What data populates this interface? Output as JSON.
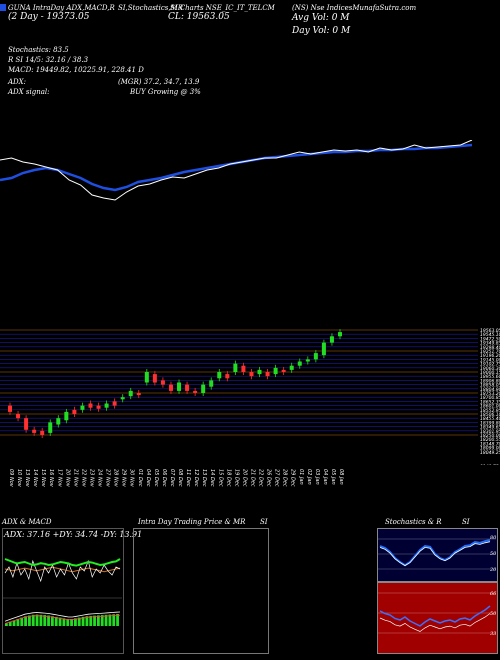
{
  "header": {
    "line1_left": "GUNA IntraDay ADX,MACD,R",
    "line1_mid1": "SI,Stochastics,MR",
    "line1_mid2": "SI Charts NSE_IC_IT_TELCM",
    "line1_right": "(NS) Nse IndicesMunafaSutra.com",
    "line2_left": "(2 Day - 19373.05",
    "line2_mid": "CL: 19563.05",
    "line2_right": "Avg Vol: 0  M",
    "line3_right": "Day Vol: 0   M",
    "stoch": "Stochastics: 83.5",
    "rsi": "R                    SI 14/5: 32.16 / 38.3",
    "macd": "MACD: 19449.82,  10225.91,  228.41 D",
    "adx_label": "ADX:",
    "adx_values": "(MGR) 37.2,  34.7,  13.9",
    "adx_signal": "ADX signal:",
    "adx_signal_value": "BUY Growing @ 3%"
  },
  "colors": {
    "background": "#000000",
    "price_line": "#ffffff",
    "ma_line": "#1f4fe0",
    "grid_orange": "#b06a10",
    "grid_blue": "#1a1aa0",
    "candle_up": "#22dd22",
    "candle_down": "#ff3030",
    "rsi_panel_bg": "#a00000",
    "stoch_panel_bg": "#000033"
  },
  "price_axis_labels": [
    "19563.05",
    "19545.10",
    "19472.50",
    "19349.85",
    "19298.40",
    "19251.70",
    "19196.20",
    "19145.00",
    "19102.75",
    "19060.30",
    "19000.15",
    "18955.60",
    "18906.80",
    "18858.05",
    "18804.90",
    "18753.20",
    "18700.85",
    "18652.35",
    "18601.00",
    "18552.95",
    "18506.10",
    "18455.40",
    "18399.80",
    "18349.65",
    "18301.95",
    "18250.00",
    "18200.55",
    "18148.70",
    "18099.00",
    "18049.25",
    "9148.75",
    "9149.75"
  ],
  "dates": [
    "09 Nov",
    "10 Nov",
    "13 Nov",
    "14 Nov",
    "15 Nov",
    "16 Nov",
    "17 Nov",
    "20 Nov",
    "21 Nov",
    "22 Nov",
    "23 Nov",
    "24 Nov",
    "27 Nov",
    "28 Nov",
    "29 Nov",
    "30 Nov",
    "01 Dec",
    "04 Dec",
    "05 Dec",
    "06 Dec",
    "07 Dec",
    "08 Dec",
    "11 Dec",
    "12 Dec",
    "13 Dec",
    "14 Dec",
    "15 Dec",
    "18 Dec",
    "19 Dec",
    "20 Dec",
    "21 Dec",
    "22 Dec",
    "26 Dec",
    "27 Dec",
    "28 Dec",
    "29 Dec",
    "01 Jan",
    "02 Jan",
    "03 Jan",
    "04 Jan",
    "05 Jan",
    "08 Jan"
  ],
  "panels": {
    "adx_title": "ADX  & MACD",
    "adx_readout": "ADX: 37.16  +DY: 34.74  -DY: 13.91",
    "intra_title": "Intra  Day Trading Price  & MR",
    "intra_title2": "SI",
    "stoch_title": "Stochastics & R",
    "stoch_title2": "SI",
    "stoch_levels": [
      "80",
      "50",
      "20"
    ],
    "rsi_levels": [
      "66",
      "50",
      "33"
    ],
    "stoch_value": "83.5",
    "rsi_value": "32.16"
  },
  "chart_data": {
    "type": "candlestick",
    "price_line": [
      0.2,
      0.18,
      0.22,
      0.24,
      0.27,
      0.3,
      0.4,
      0.45,
      0.55,
      0.58,
      0.6,
      0.52,
      0.46,
      0.44,
      0.4,
      0.37,
      0.38,
      0.34,
      0.3,
      0.28,
      0.24,
      0.22,
      0.2,
      0.18,
      0.18,
      0.15,
      0.12,
      0.14,
      0.12,
      0.1,
      0.11,
      0.1,
      0.12,
      0.08,
      0.1,
      0.09,
      0.05,
      0.08,
      0.07,
      0.06,
      0.05,
      0.0
    ],
    "ma_line": [
      0.4,
      0.38,
      0.33,
      0.3,
      0.28,
      0.3,
      0.34,
      0.38,
      0.44,
      0.48,
      0.5,
      0.47,
      0.42,
      0.4,
      0.38,
      0.35,
      0.32,
      0.3,
      0.28,
      0.26,
      0.24,
      0.22,
      0.2,
      0.18,
      0.17,
      0.16,
      0.15,
      0.14,
      0.13,
      0.12,
      0.12,
      0.11,
      0.11,
      0.1,
      0.1,
      0.09,
      0.09,
      0.08,
      0.08,
      0.07,
      0.06,
      0.05
    ],
    "candles": [
      {
        "o": 0.72,
        "c": 0.78,
        "up": false
      },
      {
        "o": 0.8,
        "c": 0.84,
        "up": false
      },
      {
        "o": 0.84,
        "c": 0.95,
        "up": false
      },
      {
        "o": 0.95,
        "c": 0.98,
        "up": false
      },
      {
        "o": 0.96,
        "c": 1.0,
        "up": false
      },
      {
        "o": 0.98,
        "c": 0.88,
        "up": true
      },
      {
        "o": 0.9,
        "c": 0.84,
        "up": true
      },
      {
        "o": 0.86,
        "c": 0.78,
        "up": true
      },
      {
        "o": 0.8,
        "c": 0.76,
        "up": false
      },
      {
        "o": 0.76,
        "c": 0.72,
        "up": true
      },
      {
        "o": 0.74,
        "c": 0.7,
        "up": false
      },
      {
        "o": 0.72,
        "c": 0.75,
        "up": false
      },
      {
        "o": 0.74,
        "c": 0.7,
        "up": true
      },
      {
        "o": 0.72,
        "c": 0.68,
        "up": false
      },
      {
        "o": 0.66,
        "c": 0.64,
        "up": true
      },
      {
        "o": 0.63,
        "c": 0.58,
        "up": true
      },
      {
        "o": 0.6,
        "c": 0.62,
        "up": false
      },
      {
        "o": 0.5,
        "c": 0.4,
        "up": true
      },
      {
        "o": 0.42,
        "c": 0.5,
        "up": false
      },
      {
        "o": 0.48,
        "c": 0.52,
        "up": false
      },
      {
        "o": 0.52,
        "c": 0.58,
        "up": false
      },
      {
        "o": 0.58,
        "c": 0.5,
        "up": true
      },
      {
        "o": 0.52,
        "c": 0.58,
        "up": false
      },
      {
        "o": 0.58,
        "c": 0.6,
        "up": false
      },
      {
        "o": 0.6,
        "c": 0.52,
        "up": true
      },
      {
        "o": 0.54,
        "c": 0.48,
        "up": true
      },
      {
        "o": 0.46,
        "c": 0.4,
        "up": true
      },
      {
        "o": 0.42,
        "c": 0.46,
        "up": false
      },
      {
        "o": 0.4,
        "c": 0.32,
        "up": true
      },
      {
        "o": 0.34,
        "c": 0.4,
        "up": false
      },
      {
        "o": 0.4,
        "c": 0.44,
        "up": false
      },
      {
        "o": 0.42,
        "c": 0.38,
        "up": true
      },
      {
        "o": 0.4,
        "c": 0.44,
        "up": false
      },
      {
        "o": 0.42,
        "c": 0.36,
        "up": true
      },
      {
        "o": 0.38,
        "c": 0.4,
        "up": false
      },
      {
        "o": 0.38,
        "c": 0.34,
        "up": true
      },
      {
        "o": 0.34,
        "c": 0.3,
        "up": true
      },
      {
        "o": 0.3,
        "c": 0.28,
        "up": true
      },
      {
        "o": 0.28,
        "c": 0.22,
        "up": true
      },
      {
        "o": 0.24,
        "c": 0.12,
        "up": true
      },
      {
        "o": 0.12,
        "c": 0.06,
        "up": true
      },
      {
        "o": 0.06,
        "c": 0.02,
        "up": true
      }
    ],
    "stoch": [
      0.7,
      0.65,
      0.55,
      0.4,
      0.3,
      0.22,
      0.3,
      0.45,
      0.6,
      0.7,
      0.68,
      0.5,
      0.4,
      0.35,
      0.42,
      0.55,
      0.62,
      0.7,
      0.72,
      0.8,
      0.78,
      0.82,
      0.85
    ],
    "rsi": [
      0.6,
      0.55,
      0.52,
      0.45,
      0.42,
      0.48,
      0.4,
      0.35,
      0.3,
      0.38,
      0.44,
      0.4,
      0.36,
      0.4,
      0.42,
      0.38,
      0.44,
      0.46,
      0.42,
      0.5,
      0.56,
      0.62,
      0.7
    ],
    "adx_green": [
      0.3,
      0.35,
      0.4,
      0.45,
      0.42,
      0.4,
      0.45,
      0.5,
      0.48,
      0.44,
      0.46,
      0.5,
      0.48,
      0.44,
      0.4,
      0.42,
      0.45,
      0.5,
      0.52,
      0.48,
      0.44,
      0.4,
      0.42,
      0.46,
      0.5,
      0.48,
      0.44,
      0.4,
      0.38,
      0.3
    ],
    "adx_white": [
      0.7,
      0.55,
      0.8,
      0.45,
      0.75,
      0.6,
      0.85,
      0.4,
      0.65,
      0.9,
      0.55,
      0.7,
      0.5,
      0.8,
      0.6,
      0.75,
      0.45,
      0.7,
      0.85,
      0.55,
      0.65,
      0.4,
      0.8,
      0.6,
      0.7,
      0.5,
      0.65,
      0.75,
      0.55,
      0.6
    ],
    "adx_orange": [
      0.6,
      0.62,
      0.64,
      0.62,
      0.6,
      0.58,
      0.6,
      0.62,
      0.64,
      0.62,
      0.6,
      0.58,
      0.56,
      0.58,
      0.6,
      0.62,
      0.64,
      0.66,
      0.64,
      0.62,
      0.6,
      0.58,
      0.6,
      0.62,
      0.64,
      0.66,
      0.64,
      0.62,
      0.6,
      0.58
    ],
    "macd_bars": [
      0.2,
      0.3,
      0.4,
      0.5,
      0.6,
      0.7,
      0.75,
      0.8,
      0.82,
      0.8,
      0.78,
      0.75,
      0.7,
      0.65,
      0.6,
      0.55,
      0.5,
      0.5,
      0.55,
      0.6,
      0.65,
      0.7,
      0.72,
      0.74,
      0.76,
      0.78,
      0.8,
      0.82,
      0.84,
      0.86
    ]
  }
}
